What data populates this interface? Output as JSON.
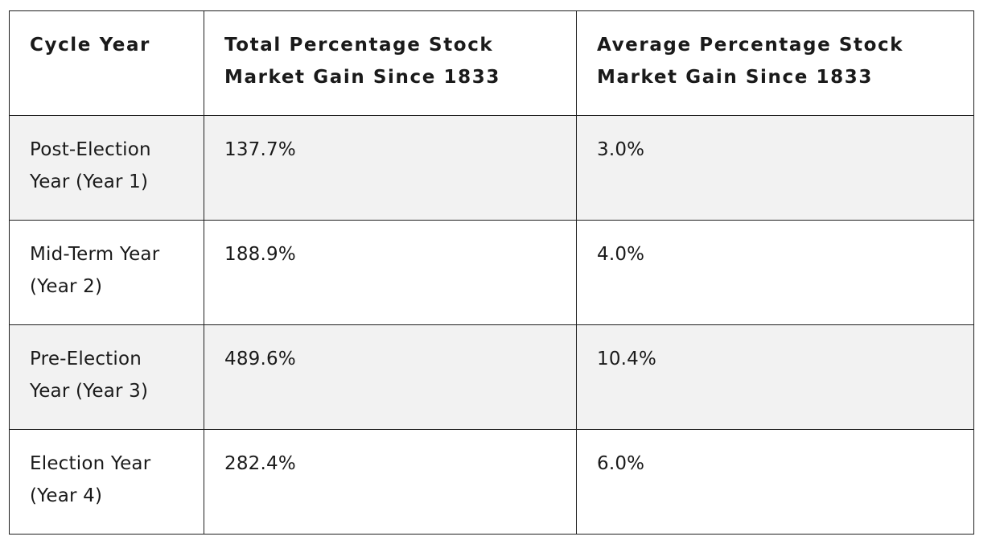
{
  "table": {
    "headers": [
      "Cycle Year",
      "Total Percentage Stock Market Gain Since 1833",
      "Average Percentage Stock Market Gain Since 1833"
    ],
    "rows": [
      {
        "cycle": "Post-Election Year (Year 1)",
        "total": "137.7%",
        "average": "3.0%",
        "shaded": true
      },
      {
        "cycle": "Mid-Term Year (Year 2)",
        "total": "188.9%",
        "average": "4.0%",
        "shaded": false
      },
      {
        "cycle": "Pre-Election Year (Year 3)",
        "total": "489.6%",
        "average": "10.4%",
        "shaded": true
      },
      {
        "cycle": "Election Year (Year 4)",
        "total": "282.4%",
        "average": "6.0%",
        "shaded": false
      }
    ],
    "colors": {
      "shaded_row": "#f2f2f2",
      "plain_row": "#ffffff",
      "border": "#1f1f1f",
      "text": "#1a1a1a"
    }
  }
}
